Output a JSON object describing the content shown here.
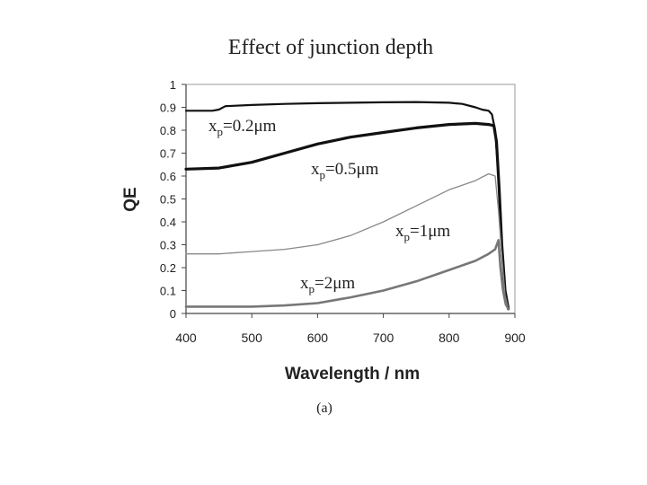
{
  "chart_data": {
    "type": "line",
    "title": "Effect of junction depth",
    "xlabel": "Wavelength / nm",
    "ylabel": "QE",
    "caption": "(a)",
    "xlim": [
      400,
      900
    ],
    "ylim": [
      0,
      1
    ],
    "xticks": [
      "400",
      "500",
      "600",
      "700",
      "800",
      "900"
    ],
    "yticks": [
      "0",
      "0.1",
      "0.2",
      "0.3",
      "0.4",
      "0.5",
      "0.6",
      "0.7",
      "0.8",
      "0.9",
      "1"
    ],
    "grid": false,
    "series": [
      {
        "name": "x_p=0.2μm",
        "label_main": "x",
        "label_sub": "p",
        "label_rest": "=0.2μm",
        "color": "#111111",
        "width": 2.2,
        "x": [
          400,
          420,
          440,
          450,
          460,
          500,
          550,
          600,
          650,
          700,
          750,
          800,
          820,
          840,
          850,
          860,
          865,
          870,
          875,
          880,
          885,
          890
        ],
        "y": [
          0.885,
          0.885,
          0.885,
          0.89,
          0.905,
          0.91,
          0.915,
          0.918,
          0.92,
          0.922,
          0.923,
          0.92,
          0.915,
          0.9,
          0.89,
          0.885,
          0.87,
          0.8,
          0.6,
          0.3,
          0.1,
          0.02
        ]
      },
      {
        "name": "x_p=0.5μm",
        "label_main": "x",
        "label_sub": "p",
        "label_rest": "=0.5μm",
        "color": "#111111",
        "width": 3.2,
        "x": [
          400,
          450,
          500,
          550,
          600,
          650,
          700,
          750,
          800,
          840,
          860,
          868,
          872,
          876,
          880,
          885,
          890
        ],
        "y": [
          0.63,
          0.635,
          0.66,
          0.7,
          0.74,
          0.77,
          0.79,
          0.81,
          0.825,
          0.83,
          0.825,
          0.82,
          0.75,
          0.55,
          0.3,
          0.1,
          0.02
        ]
      },
      {
        "name": "x_p=1μm",
        "label_main": "x",
        "label_sub": "p",
        "label_rest": "=1μm",
        "color": "#888888",
        "width": 1.3,
        "x": [
          400,
          450,
          500,
          550,
          600,
          650,
          700,
          750,
          800,
          840,
          860,
          870,
          875,
          880,
          885,
          890
        ],
        "y": [
          0.26,
          0.26,
          0.27,
          0.28,
          0.3,
          0.34,
          0.4,
          0.47,
          0.54,
          0.58,
          0.61,
          0.6,
          0.45,
          0.25,
          0.08,
          0.02
        ]
      },
      {
        "name": "x_p=2μm",
        "label_main": "x",
        "label_sub": "p",
        "label_rest": "=2μm",
        "color": "#777777",
        "width": 2.6,
        "x": [
          400,
          450,
          500,
          550,
          600,
          650,
          700,
          750,
          800,
          840,
          860,
          870,
          875,
          878,
          882,
          886,
          890
        ],
        "y": [
          0.03,
          0.03,
          0.03,
          0.035,
          0.045,
          0.07,
          0.1,
          0.14,
          0.19,
          0.23,
          0.26,
          0.28,
          0.32,
          0.2,
          0.1,
          0.04,
          0.02
        ]
      }
    ]
  }
}
